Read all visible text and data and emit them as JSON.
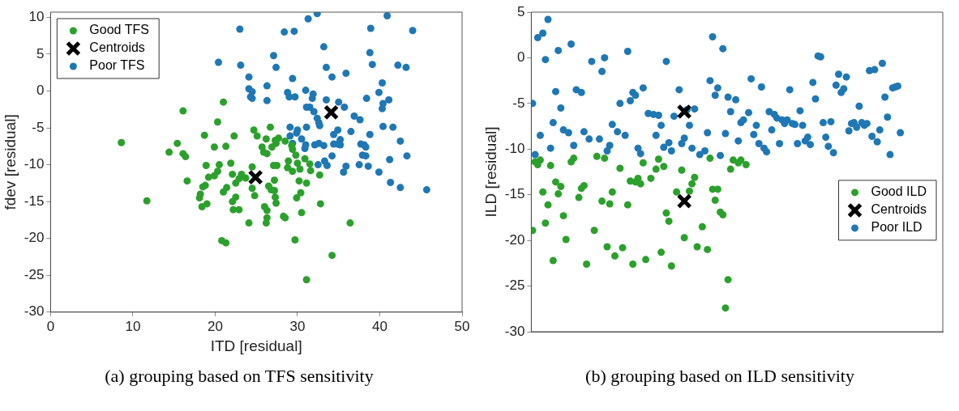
{
  "chart_data": [
    {
      "type": "scatter",
      "xlabel": "ITD [residual]",
      "ylabel": "fdev [residual]",
      "xlim": [
        0,
        50
      ],
      "ylim": [
        -30,
        10.7
      ],
      "xticks": [
        0,
        10,
        20,
        30,
        40,
        50
      ],
      "yticks": [
        -30,
        -25,
        -20,
        -15,
        -10,
        -5,
        0,
        5,
        10
      ],
      "grid": false,
      "legend": "top left",
      "annotations": [
        "(a) grouping based on TFS sensitivity"
      ],
      "series": [
        {
          "name": "Good TFS",
          "color": "#2ca02c",
          "marker": "circle",
          "x": [
            8.6,
            11.7,
            16.1,
            21.0,
            20.3,
            18.7,
            15.4,
            14.4,
            16.1,
            16.4,
            19.9,
            21.3,
            22.3,
            24.7,
            25.1,
            18.9,
            20.5,
            21.9,
            20.3,
            19.9,
            19.2,
            16.6,
            22.1,
            22.5,
            22.9,
            23.2,
            23.7,
            24.5,
            24.5,
            24.8,
            21.4,
            21.0,
            18.8,
            18.5,
            18.2,
            18.1,
            19.0,
            18.4,
            22.5,
            22.1,
            22.2,
            22.9,
            24.1,
            20.8,
            21.3,
            26.2,
            26.7,
            25.7,
            25.9,
            26.3,
            26.9,
            27.3,
            27.7,
            27.4,
            28.5,
            27.1,
            27.5,
            27.2,
            26.5,
            26.8,
            27.2,
            27.3,
            27.4,
            26.0,
            26.3,
            26.3,
            26.2,
            28.3,
            28.5,
            29.3,
            29.4,
            29.8,
            28.9,
            28.8,
            29.4,
            30.0,
            30.3,
            30.9,
            31.5,
            31.6,
            32.7,
            30.2,
            31.1,
            30.4,
            29.9,
            32.8,
            30.5,
            29.7,
            34.2,
            31.1,
            36.4
          ],
          "values": [
            -7.0,
            -14.9,
            -2.7,
            -1.5,
            -4.2,
            -6.0,
            -7.1,
            -8.3,
            -8.5,
            -8.9,
            -7.6,
            -7.5,
            -6.1,
            -5.3,
            -6.1,
            -10.1,
            -10.0,
            -9.8,
            -10.9,
            -11.5,
            -11.7,
            -12.2,
            -11.3,
            -12.5,
            -11.9,
            -11.3,
            -11.8,
            -10.3,
            -13.2,
            -14.2,
            -13.1,
            -13.7,
            -12.8,
            -13.0,
            -14.0,
            -14.5,
            -15.3,
            -15.7,
            -14.4,
            -15.0,
            -16.1,
            -16.1,
            -17.9,
            -20.3,
            -20.6,
            -6.5,
            -4.9,
            -7.6,
            -8.3,
            -8.5,
            -7.6,
            -6.7,
            -6.4,
            -7.1,
            -6.8,
            -10.1,
            -10.1,
            -12.1,
            -12.9,
            -13.4,
            -13.5,
            -14.4,
            -15.2,
            -15.7,
            -16.2,
            -17.2,
            -17.9,
            -17.0,
            -17.2,
            -7.4,
            -7.9,
            -8.7,
            -9.5,
            -10.4,
            -10.9,
            -9.8,
            -10.6,
            -9.2,
            -9.9,
            -10.8,
            -11.4,
            -12.2,
            -12.5,
            -13.8,
            -14.5,
            -15.3,
            -16.5,
            -20.2,
            -22.3,
            -25.6,
            -17.9
          ]
        },
        {
          "name": "Centroids",
          "color": "#000000",
          "marker": "cross",
          "x": [
            24.9,
            34.1
          ],
          "values": [
            -11.7,
            -2.9
          ]
        },
        {
          "name": "Poor TFS",
          "color": "#1f77b4",
          "marker": "circle",
          "x": [
            23.0,
            20.4,
            23.1,
            24.1,
            24.1,
            24.5,
            24.3,
            24.5,
            32.4,
            31.3,
            40.9,
            28.4,
            29.6,
            38.9,
            44.0,
            33.2,
            27.1,
            27.4,
            38.8,
            39.1,
            42.2,
            43.2,
            33.5,
            34.2,
            35.9,
            29.4,
            26.3,
            26.3,
            28.8,
            29.0,
            29.7,
            31.0,
            31.9,
            31.8,
            33.5,
            35.0,
            35.7,
            31.1,
            31.5,
            32.0,
            32.4,
            32.7,
            32.6,
            36.9,
            37.6,
            38.4,
            39.9,
            40.3,
            41.1,
            40.4,
            40.3,
            40.4,
            41.6,
            29.1,
            30.0,
            29.9,
            31.1,
            29.1,
            30.5,
            29.4,
            31.0,
            30.9,
            32.1,
            32.6,
            33.2,
            34.9,
            34.4,
            35.2,
            34.4,
            34.9,
            35.2,
            36.5,
            38.8,
            37.7,
            38.1,
            38.3,
            37.9,
            38.3,
            42.5,
            43.3,
            41.2,
            34.2,
            33.3,
            32.5,
            33.6,
            35.9,
            35.6,
            37.5,
            38.6,
            39.9,
            41.3,
            42.5,
            45.7
          ],
          "values": [
            8.4,
            3.9,
            3.5,
            1.9,
            0.3,
            -0.1,
            -0.8,
            -1.0,
            10.5,
            9.8,
            10.2,
            8.0,
            8.1,
            8.5,
            8.2,
            6.0,
            4.8,
            3.2,
            5.2,
            3.6,
            3.5,
            3.2,
            3.2,
            1.9,
            2.4,
            1.7,
            0.7,
            -1.3,
            -0.2,
            -0.8,
            -0.8,
            0.1,
            -0.4,
            -1.0,
            -1.2,
            -1.5,
            -2.2,
            -2.2,
            -2.2,
            -2.8,
            -3.7,
            -4.7,
            -4.3,
            -3.4,
            -3.9,
            -1.0,
            -0.2,
            1.1,
            -1.2,
            -1.7,
            -2.4,
            -4.8,
            -4.9,
            -4.9,
            -5.3,
            -5.7,
            -4.9,
            -6.1,
            -6.5,
            -7.1,
            -7.3,
            -7.8,
            -7.3,
            -7.1,
            -7.4,
            -5.3,
            -5.9,
            -6.6,
            -7.2,
            -7.2,
            -7.3,
            -5.5,
            -5.9,
            -7.2,
            -7.3,
            -7.6,
            -8.7,
            -8.8,
            -6.8,
            -8.8,
            -9.3,
            -8.8,
            -9.5,
            -10.0,
            -10.1,
            -10.2,
            -11.0,
            -10.0,
            -10.2,
            -11.0,
            -12.4,
            -13.1,
            -13.4
          ]
        }
      ]
    },
    {
      "type": "scatter",
      "ylabel": "ILD [residual]",
      "ylim": [
        -30,
        5
      ],
      "yticks": [
        -30,
        -25,
        -20,
        -15,
        -10,
        -5,
        0,
        5
      ],
      "grid": false,
      "tick_labels": "y",
      "legend": "right",
      "annotations": [
        "(b) grouping based on ILD sensitivity"
      ],
      "categories": [
        null,
        null,
        null,
        null,
        null,
        null,
        null,
        null,
        null,
        null,
        null,
        null,
        null,
        null,
        null,
        null,
        null,
        null,
        null,
        null,
        null,
        null,
        null,
        null,
        null,
        null,
        null,
        null,
        null,
        null,
        null,
        null,
        null,
        null,
        null,
        null,
        null,
        null,
        null,
        null,
        null,
        null,
        null,
        null,
        null,
        null,
        null,
        null,
        null,
        null,
        null,
        null,
        null,
        null,
        null,
        null,
        null,
        null,
        null,
        null,
        null,
        null,
        null,
        null,
        null,
        null,
        null,
        null,
        null,
        null,
        null,
        null,
        null,
        null,
        null,
        null,
        null,
        null,
        null,
        null,
        null,
        null,
        null,
        null,
        null,
        null,
        null,
        null,
        null,
        null,
        null,
        null,
        null,
        null,
        null,
        null,
        null,
        null,
        null,
        null,
        null,
        null,
        null,
        null,
        null,
        null,
        null,
        null,
        null,
        null,
        null,
        null,
        null,
        null,
        null,
        null,
        null,
        null,
        null,
        null,
        null,
        null,
        null,
        null,
        null,
        null,
        null,
        null,
        null,
        null,
        null,
        null,
        null,
        null,
        null,
        null,
        null,
        null,
        null,
        null,
        null,
        null,
        null,
        null,
        null,
        null,
        null,
        null,
        null,
        null,
        null,
        null,
        null,
        null,
        null,
        null,
        null,
        null,
        null,
        null
      ],
      "series": [
        {
          "name": "Good ILD",
          "color": "#2ca02c",
          "marker": "circle",
          "values": [
            -18.9,
            -11.4,
            -11.7,
            -11.2,
            -14.7,
            -18.1,
            -16.1,
            -11.8,
            -22.2,
            -13.6,
            -14.9,
            -14.1,
            -17.3,
            -19.9,
            null,
            -11.4,
            -11.0,
            null,
            -15.3,
            -14.3,
            -14.0,
            -22.6,
            null,
            null,
            -18.9,
            -10.8,
            null,
            -15.7,
            -11.0,
            -20.7,
            -16.0,
            -14.7,
            -21.7,
            null,
            -12.1,
            -20.8,
            null,
            -16.1,
            -13.5,
            -22.6,
            -13.6,
            -13.2,
            -13.8,
            -11.5,
            -22.1,
            null,
            -13.2,
            null,
            -12.2,
            -11.1,
            -21.3,
            -11.9,
            -17.0,
            -17.9,
            -22.8,
            null,
            -14.7,
            null,
            -12.3,
            -19.7,
            null,
            -14.6,
            -13.8,
            -13.1,
            -20.7,
            null,
            -18.5,
            null,
            -21.0,
            -11.0,
            -14.4,
            -15.6,
            -14.4,
            -16.9,
            -17.2,
            -27.4,
            -24.3,
            -12.2,
            -11.2,
            null,
            -11.5,
            -11.2,
            null,
            -11.7,
            null,
            null,
            null,
            null,
            null,
            null,
            null,
            null,
            null,
            null,
            null,
            null,
            null,
            null,
            null,
            null,
            null,
            null,
            null,
            null,
            null,
            null,
            null,
            null,
            null,
            null,
            null,
            null,
            null,
            null,
            null,
            null,
            null,
            null,
            null,
            null,
            null,
            null,
            null,
            null,
            null,
            null,
            null,
            null,
            null,
            null,
            null,
            null,
            null,
            null,
            null,
            null,
            null,
            null,
            null,
            null,
            null,
            null,
            null,
            null,
            null,
            null,
            null,
            null,
            null,
            null,
            null,
            null,
            null,
            null,
            null,
            null,
            null,
            null,
            null,
            null
          ]
        },
        {
          "name": "Centroids",
          "color": "#000000",
          "marker": "cross",
          "values": [
            null,
            null,
            null,
            null,
            null,
            null,
            null,
            null,
            null,
            null,
            null,
            null,
            null,
            null,
            null,
            null,
            null,
            null,
            null,
            null,
            null,
            null,
            null,
            null,
            null,
            null,
            null,
            null,
            null,
            null,
            null,
            null,
            null,
            null,
            null,
            null,
            null,
            null,
            null,
            null,
            null,
            null,
            null,
            null,
            null,
            null,
            null,
            null,
            null,
            null,
            null,
            null,
            null,
            null,
            null,
            null,
            null,
            null,
            null,
            -5.9,
            null,
            null,
            null,
            null,
            null,
            null,
            null,
            null,
            null,
            null,
            null,
            null,
            null,
            null,
            null,
            null,
            null,
            null,
            null,
            null,
            null,
            null,
            null,
            null,
            null,
            null,
            null,
            null,
            null,
            null,
            null,
            null,
            null,
            null,
            null,
            null,
            null,
            null,
            null,
            null,
            null,
            null,
            null,
            null,
            null,
            null,
            null,
            null,
            null,
            null,
            null,
            null,
            null,
            null,
            null,
            null,
            null,
            null,
            null,
            null,
            null,
            null,
            null,
            null,
            null,
            null,
            null,
            null,
            null,
            null,
            null,
            null,
            null,
            null,
            null,
            null,
            null,
            null,
            null,
            null,
            null,
            null,
            null,
            null,
            null,
            null,
            null,
            null,
            null,
            null,
            null,
            null,
            null,
            null,
            null,
            null,
            null,
            null,
            null,
            null
          ]
        },
        {
          "color": "#000000",
          "marker": "cross",
          "values": [
            null,
            null,
            null,
            null,
            null,
            null,
            null,
            null,
            null,
            null,
            null,
            null,
            null,
            null,
            null,
            null,
            null,
            null,
            null,
            null,
            null,
            null,
            null,
            null,
            null,
            null,
            null,
            null,
            null,
            null,
            null,
            null,
            null,
            null,
            null,
            null,
            null,
            null,
            null,
            null,
            null,
            null,
            null,
            null,
            null,
            null,
            null,
            null,
            null,
            null,
            null,
            null,
            null,
            null,
            null,
            null,
            null,
            null,
            null,
            -15.7,
            null,
            null,
            null,
            null,
            null,
            null,
            null,
            null,
            null,
            null,
            null,
            null,
            null,
            null,
            null,
            null,
            null,
            null,
            null,
            null,
            null,
            null,
            null,
            null,
            null,
            null,
            null,
            null,
            null,
            null,
            null,
            null,
            null,
            null,
            null,
            null,
            null,
            null,
            null,
            null,
            null,
            null,
            null,
            null,
            null,
            null,
            null,
            null,
            null,
            null,
            null,
            null,
            null,
            null,
            null,
            null,
            null,
            null,
            null,
            null,
            null,
            null,
            null,
            null,
            null,
            null,
            null,
            null,
            null,
            null,
            null,
            null,
            null,
            null,
            null,
            null,
            null,
            null,
            null,
            null,
            null,
            null,
            null,
            null,
            null,
            null,
            null,
            null,
            null,
            null,
            null,
            null,
            null,
            null,
            null,
            null,
            null,
            null,
            null,
            null
          ]
        },
        {
          "name": "Poor ILD",
          "color": "#1f77b4",
          "marker": "circle",
          "values": [
            -5.0,
            -10.6,
            2.2,
            -8.5,
            2.7,
            -0.2,
            4.2,
            -9.9,
            -7.1,
            -3.7,
            0.8,
            -5.5,
            -7.9,
            null,
            -8.2,
            1.5,
            -9.6,
            -3.5,
            null,
            -3.8,
            -8.1,
            null,
            -8.9,
            -0.4,
            null,
            null,
            -8.9,
            -1.5,
            0.0,
            -10.2,
            -9.6,
            -7.3,
            null,
            -8.1,
            -5.0,
            null,
            -8.5,
            0.7,
            -4.7,
            -3.8,
            -4.1,
            -9.9,
            -10.5,
            -3.3,
            null,
            -6.1,
            null,
            -6.2,
            -8.5,
            -6.3,
            -7.4,
            -9.8,
            -0.4,
            -9.3,
            -10.2,
            -6.4,
            null,
            -3.5,
            -9.4,
            -8.8,
            -5.7,
            -7.4,
            -9.9,
            -5.6,
            null,
            -10.6,
            null,
            -10.2,
            -8.2,
            -2.5,
            2.3,
            -4.1,
            -3.3,
            -10.7,
            1.0,
            -8.3,
            -4.3,
            -5.9,
            null,
            -4.6,
            -9.1,
            -7.1,
            -6.8,
            null,
            -6.0,
            -2.3,
            -8.4,
            -7.4,
            -9.4,
            -3.2,
            -9.9,
            -10.3,
            -5.9,
            -7.9,
            -6.2,
            -6.6,
            -9.4,
            -6.8,
            -7.2,
            -6.8,
            -3.5,
            -7.2,
            -7.3,
            -9.4,
            -5.8,
            -7.4,
            -9.1,
            -8.7,
            -9.5,
            -2.7,
            -4.5,
            0.2,
            0.1,
            -7.1,
            -8.7,
            -9.7,
            -7.0,
            -10.4,
            -3.0,
            -1.8,
            -3.8,
            -3.4,
            -2.1,
            -8.0,
            -7.2,
            -7.1,
            -7.6,
            -5.3,
            -7.1,
            -7.4,
            -7.2,
            -1.4,
            -8.6,
            -1.3,
            -9.2,
            -7.9,
            -0.6,
            -4.3,
            -6.5,
            -10.6,
            -3.3,
            -3.2,
            -3.1,
            -8.2,
            null,
            null,
            null,
            null,
            null,
            null,
            null,
            null,
            null,
            null,
            null,
            null,
            null,
            null,
            null,
            null
          ]
        }
      ]
    }
  ]
}
